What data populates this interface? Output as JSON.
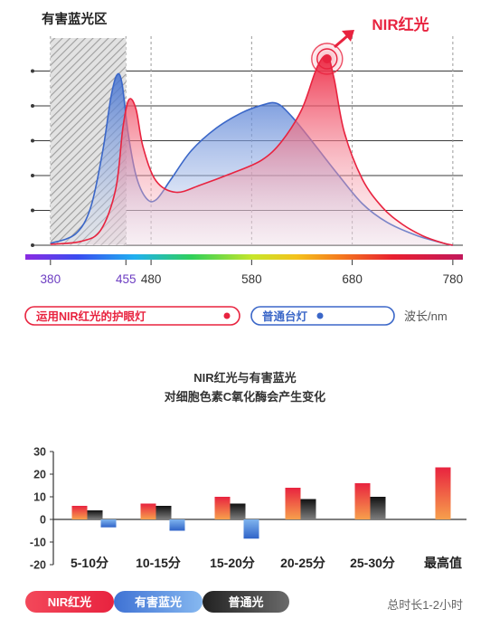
{
  "colors": {
    "nir": "#e8233f",
    "blue": "#3b67c8",
    "gray": "#333333",
    "purple": "#6d3ec2"
  },
  "chart_data": [
    {
      "type": "area",
      "title": "有害蓝光区",
      "xlabel": "波长/nm",
      "xlim": [
        355,
        790
      ],
      "x_ticks": [
        {
          "label": "380",
          "value": 380,
          "color": "purple"
        },
        {
          "label": "455",
          "value": 455,
          "color": "purple"
        },
        {
          "label": "480",
          "value": 480,
          "color": "dark"
        },
        {
          "label": "580",
          "value": 580,
          "color": "dark"
        },
        {
          "label": "680",
          "value": 680,
          "color": "dark"
        },
        {
          "label": "780",
          "value": 780,
          "color": "dark"
        }
      ],
      "hazard_band": [
        380,
        455
      ],
      "annotation": "NIR红光",
      "legend": [
        "运用NIR红光的护眼灯",
        "普通台灯"
      ],
      "series": [
        {
          "name": "运用NIR红光的护眼灯",
          "points": [
            [
              380,
              0.005
            ],
            [
              410,
              0.02
            ],
            [
              430,
              0.08
            ],
            [
              445,
              0.3
            ],
            [
              452,
              0.62
            ],
            [
              458,
              0.77
            ],
            [
              465,
              0.72
            ],
            [
              472,
              0.52
            ],
            [
              485,
              0.34
            ],
            [
              505,
              0.28
            ],
            [
              530,
              0.32
            ],
            [
              560,
              0.38
            ],
            [
              590,
              0.45
            ],
            [
              610,
              0.55
            ],
            [
              630,
              0.72
            ],
            [
              645,
              0.94
            ],
            [
              655,
              1.0
            ],
            [
              662,
              0.88
            ],
            [
              672,
              0.6
            ],
            [
              690,
              0.35
            ],
            [
              710,
              0.2
            ],
            [
              730,
              0.11
            ],
            [
              750,
              0.05
            ],
            [
              770,
              0.012
            ],
            [
              780,
              0.0
            ]
          ]
        },
        {
          "name": "普通台灯",
          "points": [
            [
              380,
              0.01
            ],
            [
              405,
              0.06
            ],
            [
              420,
              0.2
            ],
            [
              432,
              0.5
            ],
            [
              440,
              0.78
            ],
            [
              446,
              0.9
            ],
            [
              451,
              0.86
            ],
            [
              457,
              0.6
            ],
            [
              465,
              0.37
            ],
            [
              475,
              0.25
            ],
            [
              485,
              0.24
            ],
            [
              500,
              0.35
            ],
            [
              520,
              0.5
            ],
            [
              545,
              0.62
            ],
            [
              570,
              0.7
            ],
            [
              590,
              0.74
            ],
            [
              605,
              0.75
            ],
            [
              620,
              0.68
            ],
            [
              640,
              0.55
            ],
            [
              665,
              0.38
            ],
            [
              690,
              0.22
            ],
            [
              715,
              0.12
            ],
            [
              745,
              0.05
            ],
            [
              775,
              0.005
            ],
            [
              780,
              0.0
            ]
          ]
        }
      ]
    },
    {
      "type": "bar",
      "title": [
        "NIR红光与有害蓝光",
        "对细胞色素C氧化酶会产生变化"
      ],
      "categories": [
        "5-10分",
        "10-15分",
        "15-20分",
        "20-25分",
        "25-30分",
        "最高值"
      ],
      "y_ticks": [
        30,
        20,
        10,
        0,
        -10,
        -20
      ],
      "ylim": [
        -20,
        30
      ],
      "series": [
        {
          "name": "NIR红光",
          "values": [
            6,
            7,
            10,
            14,
            16,
            23
          ]
        },
        {
          "name": "普通光",
          "values": [
            4,
            6,
            7,
            9,
            10,
            null
          ]
        },
        {
          "name": "有害蓝光",
          "values": [
            -3.5,
            -5,
            -8.5,
            null,
            null,
            null
          ]
        }
      ],
      "legend": [
        "NIR红光",
        "有害蓝光",
        "普通光"
      ],
      "note": "总时长1-2小时"
    }
  ]
}
